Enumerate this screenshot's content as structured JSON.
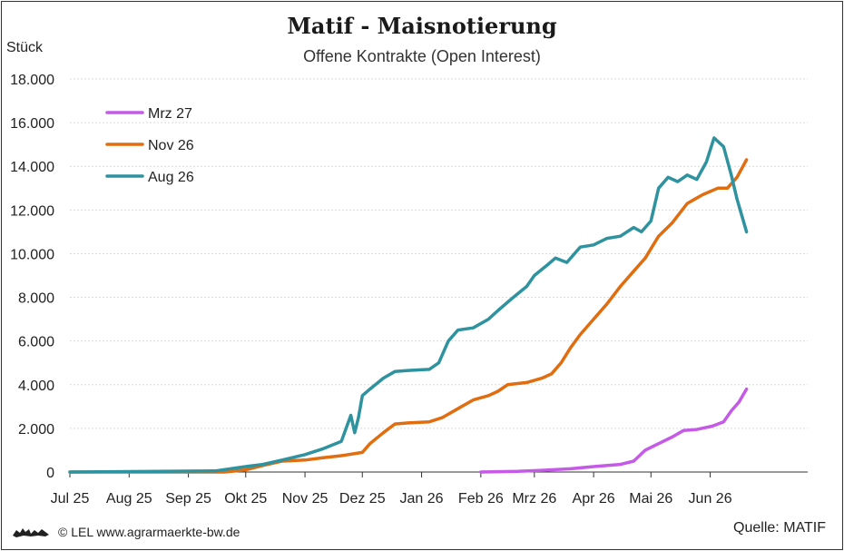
{
  "chart_data": {
    "type": "line",
    "title": "Matif - Maisnotierung",
    "subtitle": "Offene Kontrakte (Open Interest)",
    "ylabel": "Stück",
    "ylim": [
      0,
      18000
    ],
    "yticks": [
      0,
      2000,
      4000,
      6000,
      8000,
      10000,
      12000,
      14000,
      16000,
      18000
    ],
    "ytick_labels": [
      "0",
      "2.000",
      "4.000",
      "6.000",
      "8.000",
      "10.000",
      "12.000",
      "14.000",
      "16.000",
      "18.000"
    ],
    "xlim": [
      "2025-07-01",
      "2026-07-22"
    ],
    "xticks": [
      "2025-07-01",
      "2025-08-01",
      "2025-09-01",
      "2025-10-01",
      "2025-11-01",
      "2025-12-01",
      "2026-01-01",
      "2026-02-01",
      "2026-03-01",
      "2026-04-01",
      "2026-05-01",
      "2026-06-01"
    ],
    "xtick_labels": [
      "Jul 25",
      "Aug 25",
      "Sep 25",
      "Okt 25",
      "Nov 25",
      "Dez 25",
      "Jan 26",
      "Feb 26",
      "Mrz 26",
      "Apr 26",
      "Mai 26",
      "Jun 26"
    ],
    "grid": "horizontal",
    "legend": "top-left",
    "series": [
      {
        "name": "Mrz 27",
        "color": "#c45ae6",
        "points": [
          [
            "2026-02-01",
            0
          ],
          [
            "2026-02-20",
            30
          ],
          [
            "2026-03-05",
            80
          ],
          [
            "2026-03-20",
            150
          ],
          [
            "2026-04-01",
            250
          ],
          [
            "2026-04-15",
            350
          ],
          [
            "2026-04-22",
            500
          ],
          [
            "2026-04-28",
            1000
          ],
          [
            "2026-05-05",
            1300
          ],
          [
            "2026-05-12",
            1600
          ],
          [
            "2026-05-18",
            1900
          ],
          [
            "2026-05-25",
            1950
          ],
          [
            "2026-06-02",
            2100
          ],
          [
            "2026-06-08",
            2300
          ],
          [
            "2026-06-12",
            2800
          ],
          [
            "2026-06-16",
            3200
          ],
          [
            "2026-06-20",
            3800
          ]
        ]
      },
      {
        "name": "Nov 26",
        "color": "#e06d10",
        "points": [
          [
            "2025-07-01",
            0
          ],
          [
            "2025-09-20",
            0
          ],
          [
            "2025-10-01",
            100
          ],
          [
            "2025-10-10",
            300
          ],
          [
            "2025-10-20",
            500
          ],
          [
            "2025-11-01",
            550
          ],
          [
            "2025-11-10",
            650
          ],
          [
            "2025-11-20",
            750
          ],
          [
            "2025-12-01",
            900
          ],
          [
            "2025-12-05",
            1300
          ],
          [
            "2025-12-12",
            1800
          ],
          [
            "2025-12-18",
            2200
          ],
          [
            "2025-12-25",
            2250
          ],
          [
            "2026-01-05",
            2300
          ],
          [
            "2026-01-12",
            2500
          ],
          [
            "2026-01-20",
            2900
          ],
          [
            "2026-01-28",
            3300
          ],
          [
            "2026-02-05",
            3500
          ],
          [
            "2026-02-10",
            3700
          ],
          [
            "2026-02-15",
            4000
          ],
          [
            "2026-02-25",
            4100
          ],
          [
            "2026-03-05",
            4300
          ],
          [
            "2026-03-10",
            4500
          ],
          [
            "2026-03-15",
            5000
          ],
          [
            "2026-03-20",
            5700
          ],
          [
            "2026-03-25",
            6300
          ],
          [
            "2026-04-01",
            7000
          ],
          [
            "2026-04-08",
            7700
          ],
          [
            "2026-04-15",
            8500
          ],
          [
            "2026-04-22",
            9200
          ],
          [
            "2026-04-28",
            9800
          ],
          [
            "2026-05-05",
            10800
          ],
          [
            "2026-05-12",
            11400
          ],
          [
            "2026-05-20",
            12300
          ],
          [
            "2026-05-28",
            12700
          ],
          [
            "2026-06-05",
            13000
          ],
          [
            "2026-06-10",
            13000
          ],
          [
            "2026-06-15",
            13500
          ],
          [
            "2026-06-20",
            14300
          ]
        ]
      },
      {
        "name": "Aug 26",
        "color": "#2e929f",
        "points": [
          [
            "2025-07-01",
            0
          ],
          [
            "2025-09-15",
            50
          ],
          [
            "2025-10-01",
            250
          ],
          [
            "2025-10-10",
            350
          ],
          [
            "2025-10-20",
            550
          ],
          [
            "2025-11-01",
            800
          ],
          [
            "2025-11-10",
            1050
          ],
          [
            "2025-11-20",
            1400
          ],
          [
            "2025-11-25",
            2600
          ],
          [
            "2025-11-27",
            1800
          ],
          [
            "2025-11-29",
            2500
          ],
          [
            "2025-12-01",
            3500
          ],
          [
            "2025-12-05",
            3800
          ],
          [
            "2025-12-12",
            4300
          ],
          [
            "2025-12-18",
            4600
          ],
          [
            "2025-12-25",
            4650
          ],
          [
            "2026-01-05",
            4700
          ],
          [
            "2026-01-10",
            5000
          ],
          [
            "2026-01-15",
            6000
          ],
          [
            "2026-01-20",
            6500
          ],
          [
            "2026-01-28",
            6600
          ],
          [
            "2026-02-05",
            7000
          ],
          [
            "2026-02-10",
            7400
          ],
          [
            "2026-02-18",
            8000
          ],
          [
            "2026-02-25",
            8500
          ],
          [
            "2026-03-01",
            9000
          ],
          [
            "2026-03-08",
            9500
          ],
          [
            "2026-03-12",
            9800
          ],
          [
            "2026-03-18",
            9600
          ],
          [
            "2026-03-25",
            10300
          ],
          [
            "2026-04-01",
            10400
          ],
          [
            "2026-04-08",
            10700
          ],
          [
            "2026-04-15",
            10800
          ],
          [
            "2026-04-22",
            11200
          ],
          [
            "2026-04-26",
            11000
          ],
          [
            "2026-05-01",
            11500
          ],
          [
            "2026-05-05",
            13000
          ],
          [
            "2026-05-10",
            13500
          ],
          [
            "2026-05-15",
            13300
          ],
          [
            "2026-05-20",
            13600
          ],
          [
            "2026-05-25",
            13400
          ],
          [
            "2026-05-30",
            14200
          ],
          [
            "2026-06-03",
            15300
          ],
          [
            "2026-06-08",
            14900
          ],
          [
            "2026-06-12",
            13600
          ],
          [
            "2026-06-15",
            12500
          ],
          [
            "2026-06-20",
            11000
          ]
        ]
      }
    ]
  },
  "unit_label": "Stück",
  "footer": {
    "copyright": "© LEL www.agrarmaerkte-bw.de",
    "source": "Quelle: MATIF"
  }
}
